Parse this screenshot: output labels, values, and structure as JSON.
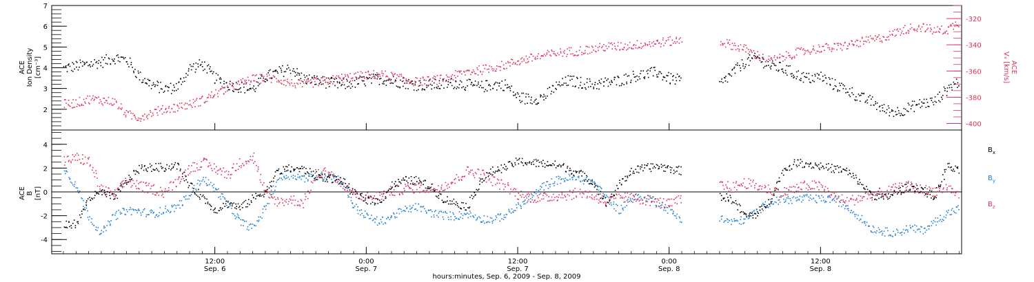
{
  "colors": {
    "black": "#000000",
    "red": "#e0305a",
    "blue": "#1f7fd6"
  },
  "chart_data": [
    {
      "type": "scatter",
      "panel": "top",
      "ylabel_lines": [
        "ACE",
        "Ion Density",
        "[cm⁻³]"
      ],
      "yticks": [
        "2",
        "3",
        "4",
        "5",
        "6",
        "7"
      ],
      "ylim": [
        1.0,
        7.0
      ],
      "right_ylabel_lines": [
        "ACE",
        "Vₓ [km/s]"
      ],
      "right_yticks": [
        "-320",
        "-340",
        "-360",
        "-380",
        "-400"
      ],
      "right_ylim": [
        -405,
        -310
      ],
      "xlim_hours": [
        0,
        72
      ],
      "series": [
        {
          "color": "black",
          "axis": "left",
          "x": [
            0,
            1,
            2,
            3,
            4,
            5,
            6,
            7,
            8,
            9,
            10,
            11,
            12,
            13,
            14,
            15,
            16,
            17,
            18,
            19,
            20,
            21,
            22,
            23,
            24,
            25,
            26,
            27,
            28,
            29,
            30,
            31,
            32,
            33,
            34,
            35,
            36,
            37,
            38,
            39,
            40,
            41,
            42,
            43,
            44,
            45,
            46,
            47,
            48,
            49,
            50,
            51,
            52,
            53,
            54,
            55,
            56,
            57,
            58,
            59,
            60,
            61,
            62,
            63,
            64,
            65,
            66,
            67,
            68,
            69,
            70,
            71
          ],
          "y": [
            4.0,
            4.1,
            4.2,
            4.3,
            4.5,
            4.4,
            3.6,
            3.2,
            3.0,
            3.1,
            4.0,
            4.2,
            3.5,
            3.2,
            3.1,
            3.0,
            3.6,
            3.8,
            4.0,
            3.5,
            3.4,
            3.3,
            3.2,
            3.3,
            3.4,
            3.5,
            3.4,
            3.3,
            3.2,
            3.2,
            3.2,
            3.3,
            3.2,
            3.1,
            3.2,
            3.2,
            2.6,
            2.5,
            2.6,
            3.1,
            3.4,
            3.3,
            3.2,
            3.3,
            3.4,
            3.6,
            3.7,
            3.8,
            3.5,
            3.4,
            null,
            null,
            3.2,
            3.8,
            4.3,
            4.5,
            4.1,
            4.0,
            3.7,
            3.5,
            3.6,
            3.2,
            3.0,
            2.6,
            2.4,
            2.0,
            1.9,
            2.1,
            2.3,
            2.4,
            3.0,
            3.4
          ]
        },
        {
          "color": "red",
          "axis": "right",
          "x": [
            0,
            1,
            2,
            3,
            4,
            5,
            6,
            7,
            8,
            9,
            10,
            11,
            12,
            13,
            14,
            15,
            16,
            17,
            18,
            19,
            20,
            21,
            22,
            23,
            24,
            25,
            26,
            27,
            28,
            29,
            30,
            31,
            32,
            33,
            34,
            35,
            36,
            37,
            38,
            39,
            40,
            41,
            42,
            43,
            44,
            45,
            46,
            47,
            48,
            49,
            50,
            51,
            52,
            53,
            54,
            55,
            56,
            57,
            58,
            59,
            60,
            61,
            62,
            63,
            64,
            65,
            66,
            67,
            68,
            69,
            70,
            71
          ],
          "y": [
            -385,
            -384,
            -381,
            -382,
            -383,
            -393,
            -395,
            -391,
            -389,
            -387,
            -385,
            -382,
            -377,
            -373,
            -369,
            -366,
            -365,
            -366,
            -369,
            -370,
            -368,
            -367,
            -365,
            -364,
            -363,
            -362,
            -364,
            -366,
            -368,
            -367,
            -366,
            -363,
            -360,
            -359,
            -357,
            -355,
            -352,
            -350,
            -348,
            -346,
            -345,
            -344,
            -343,
            -341,
            -341,
            -340,
            -339,
            -338,
            -337,
            -336,
            null,
            null,
            -337,
            -340,
            -343,
            -348,
            -352,
            -349,
            -346,
            -344,
            -342,
            -342,
            -340,
            -338,
            -336,
            -334,
            -330,
            -327,
            -326,
            -329,
            -328,
            -322
          ]
        }
      ]
    },
    {
      "type": "scatter",
      "panel": "bottom",
      "ylabel_lines": [
        "ACE",
        "B",
        "[nT]"
      ],
      "yticks": [
        "4",
        "2",
        "0",
        "-2",
        "-4"
      ],
      "ylim": [
        -5.2,
        5.2
      ],
      "xticks": [
        {
          "time": "12:00",
          "date": "Sep. 6"
        },
        {
          "time": "0:00",
          "date": "Sep. 7"
        },
        {
          "time": "12:00",
          "date": "Sep. 7"
        },
        {
          "time": "0:00",
          "date": "Sep. 8"
        },
        {
          "time": "12:00",
          "date": "Sep. 8"
        }
      ],
      "xlabel": "hours:minutes, Sep.  6, 2009 - Sep.  8, 2009",
      "legend": [
        {
          "label": "B",
          "sub": "x",
          "color": "black"
        },
        {
          "label": "B",
          "sub": "y",
          "color": "blue"
        },
        {
          "label": "B",
          "sub": "z",
          "color": "red"
        }
      ],
      "series": [
        {
          "name": "Bx",
          "color": "black",
          "x": [
            0,
            1,
            2,
            3,
            4,
            5,
            6,
            7,
            8,
            9,
            10,
            11,
            12,
            13,
            14,
            15,
            16,
            17,
            18,
            19,
            20,
            21,
            22,
            23,
            24,
            25,
            26,
            27,
            28,
            29,
            30,
            31,
            32,
            33,
            34,
            35,
            36,
            37,
            38,
            39,
            40,
            41,
            42,
            43,
            44,
            45,
            46,
            47,
            48,
            49,
            50,
            51,
            52,
            53,
            54,
            55,
            56,
            57,
            58,
            59,
            60,
            61,
            62,
            63,
            64,
            65,
            66,
            67,
            68,
            69,
            70,
            71
          ],
          "y": [
            -2.8,
            -2.6,
            -0.5,
            0.0,
            -0.5,
            1.0,
            2.0,
            2.1,
            2.1,
            2.3,
            0.5,
            -0.4,
            -1.5,
            -0.9,
            -1.3,
            -0.5,
            0.1,
            1.8,
            2.0,
            1.9,
            1.4,
            1.2,
            1.0,
            -0.1,
            -0.6,
            -0.8,
            0.6,
            1.0,
            1.0,
            0.5,
            -0.5,
            -0.9,
            -1.2,
            0.9,
            1.8,
            2.1,
            2.6,
            2.5,
            2.4,
            2.3,
            2.0,
            1.5,
            0.8,
            -1.0,
            0.6,
            1.8,
            2.0,
            2.2,
            2.0,
            1.8,
            null,
            null,
            -0.3,
            -0.6,
            -2.0,
            -1.8,
            -0.6,
            1.8,
            2.5,
            2.4,
            2.2,
            2.0,
            1.8,
            0.9,
            -0.2,
            -0.5,
            0.0,
            0.5,
            0.3,
            -0.5,
            2.2,
            1.7
          ]
        },
        {
          "name": "By",
          "color": "blue",
          "x": [
            0,
            1,
            2,
            3,
            4,
            5,
            6,
            7,
            8,
            9,
            10,
            11,
            12,
            13,
            14,
            15,
            16,
            17,
            18,
            19,
            20,
            21,
            22,
            23,
            24,
            25,
            26,
            27,
            28,
            29,
            30,
            31,
            32,
            33,
            34,
            35,
            36,
            37,
            38,
            39,
            40,
            41,
            42,
            43,
            44,
            45,
            46,
            47,
            48,
            49,
            50,
            51,
            52,
            53,
            54,
            55,
            56,
            57,
            58,
            59,
            60,
            61,
            62,
            63,
            64,
            65,
            66,
            67,
            68,
            69,
            70,
            71
          ],
          "y": [
            2.0,
            0.5,
            -2.0,
            -3.5,
            -2.0,
            -1.5,
            -1.6,
            -1.8,
            -1.5,
            -1.2,
            -0.2,
            1.2,
            0.3,
            -1.0,
            -2.5,
            -3.0,
            -1.2,
            1.2,
            1.5,
            1.2,
            1.3,
            1.5,
            1.0,
            -1.2,
            -2.0,
            -2.5,
            -2.0,
            -1.5,
            -1.2,
            -1.7,
            -1.9,
            -2.0,
            -1.8,
            -2.2,
            -2.3,
            -1.9,
            -1.2,
            -0.5,
            0.5,
            1.0,
            1.2,
            1.1,
            0.9,
            -0.5,
            -1.5,
            -0.5,
            -0.3,
            -0.8,
            -1.5,
            -2.3,
            null,
            null,
            -2.2,
            -2.5,
            -2.3,
            -1.5,
            -0.8,
            -0.6,
            -0.6,
            -0.5,
            -0.6,
            -0.5,
            -1.2,
            -2.0,
            -3.0,
            -3.3,
            -3.4,
            -3.0,
            -3.2,
            -2.5,
            -1.8,
            -1.3
          ]
        },
        {
          "name": "Bz",
          "color": "red",
          "x": [
            0,
            1,
            2,
            3,
            4,
            5,
            6,
            7,
            8,
            9,
            10,
            11,
            12,
            13,
            14,
            15,
            16,
            17,
            18,
            19,
            20,
            21,
            22,
            23,
            24,
            25,
            26,
            27,
            28,
            29,
            30,
            31,
            32,
            33,
            34,
            35,
            36,
            37,
            38,
            39,
            40,
            41,
            42,
            43,
            44,
            45,
            46,
            47,
            48,
            49,
            50,
            51,
            52,
            53,
            54,
            55,
            56,
            57,
            58,
            59,
            60,
            61,
            62,
            63,
            64,
            65,
            66,
            67,
            68,
            69,
            70,
            71
          ],
          "y": [
            2.6,
            2.9,
            2.6,
            0.2,
            -0.2,
            1.0,
            0.5,
            0.3,
            0.0,
            1.0,
            2.0,
            2.5,
            2.0,
            1.5,
            2.5,
            3.0,
            -0.2,
            -0.8,
            -0.6,
            -0.9,
            1.5,
            1.8,
            0.5,
            -0.2,
            -0.4,
            -0.3,
            0.1,
            0.3,
            0.4,
            0.3,
            0.5,
            1.0,
            1.8,
            1.6,
            1.0,
            0.5,
            -0.2,
            -0.4,
            -0.5,
            -0.3,
            -0.2,
            0.0,
            -0.3,
            -0.8,
            -0.4,
            -0.5,
            -0.6,
            -0.8,
            -1.0,
            -0.6,
            null,
            null,
            0.6,
            0.4,
            0.8,
            0.5,
            0.2,
            0.0,
            0.3,
            0.6,
            0.5,
            -0.3,
            -0.8,
            -0.5,
            -0.2,
            0.0,
            0.3,
            0.5,
            0.2,
            0.1,
            0.4,
            -0.3
          ]
        }
      ]
    }
  ]
}
